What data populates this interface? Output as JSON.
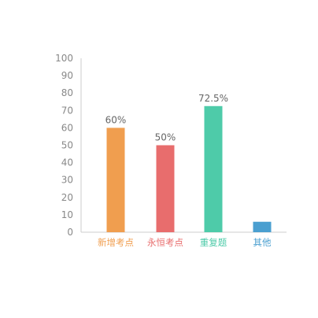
{
  "chart_data": {
    "type": "bar",
    "title": "",
    "xlabel": "",
    "ylabel": "",
    "ylim": [
      0,
      100
    ],
    "yticks": [
      0,
      10,
      20,
      30,
      40,
      50,
      60,
      70,
      80,
      90,
      100
    ],
    "categories": [
      "新增考点",
      "永恒考点",
      "重复题",
      "其他"
    ],
    "values": [
      60,
      50,
      72.5,
      6
    ],
    "data_labels": [
      "60%",
      "50%",
      "72.5%",
      ""
    ],
    "colors": [
      "#F09E4F",
      "#E86D6D",
      "#4ECBA9",
      "#4A9FD0"
    ],
    "grid": false,
    "legend": "none"
  }
}
